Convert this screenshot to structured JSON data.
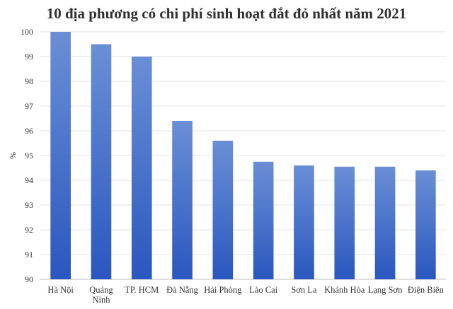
{
  "chart_data": {
    "type": "bar",
    "title": "10 địa phương có chi phí sinh hoạt đắt đỏ nhất năm 2021",
    "xlabel": "",
    "ylabel": "%",
    "categories": [
      "Hà Nội",
      "Quảng Ninh",
      "TP. HCM",
      "Đà Nẵng",
      "Hải Phòng",
      "Lào Cai",
      "Sơn La",
      "Khánh Hòa",
      "Lạng Sơn",
      "Điện Biên"
    ],
    "category_lines": [
      [
        "Hà Nội"
      ],
      [
        "Quảng",
        "Ninh"
      ],
      [
        "TP. HCM"
      ],
      [
        "Đà Nẵng"
      ],
      [
        "Hải Phòng"
      ],
      [
        "Lào Cai"
      ],
      [
        "Sơn La"
      ],
      [
        "Khánh Hòa"
      ],
      [
        "Lạng Sơn"
      ],
      [
        "Điện Biên"
      ]
    ],
    "values": [
      100,
      99.5,
      99,
      96.4,
      95.6,
      94.75,
      94.6,
      94.55,
      94.55,
      94.4
    ],
    "ylim": [
      90,
      100
    ],
    "yticks": [
      90,
      91,
      92,
      93,
      94,
      95,
      96,
      97,
      98,
      99,
      100
    ],
    "grid": true,
    "legend": "none",
    "colors": {
      "bar_top": "#6a8fd6",
      "bar_bottom": "#2a57bf",
      "grid": "#e3e3e3"
    }
  }
}
